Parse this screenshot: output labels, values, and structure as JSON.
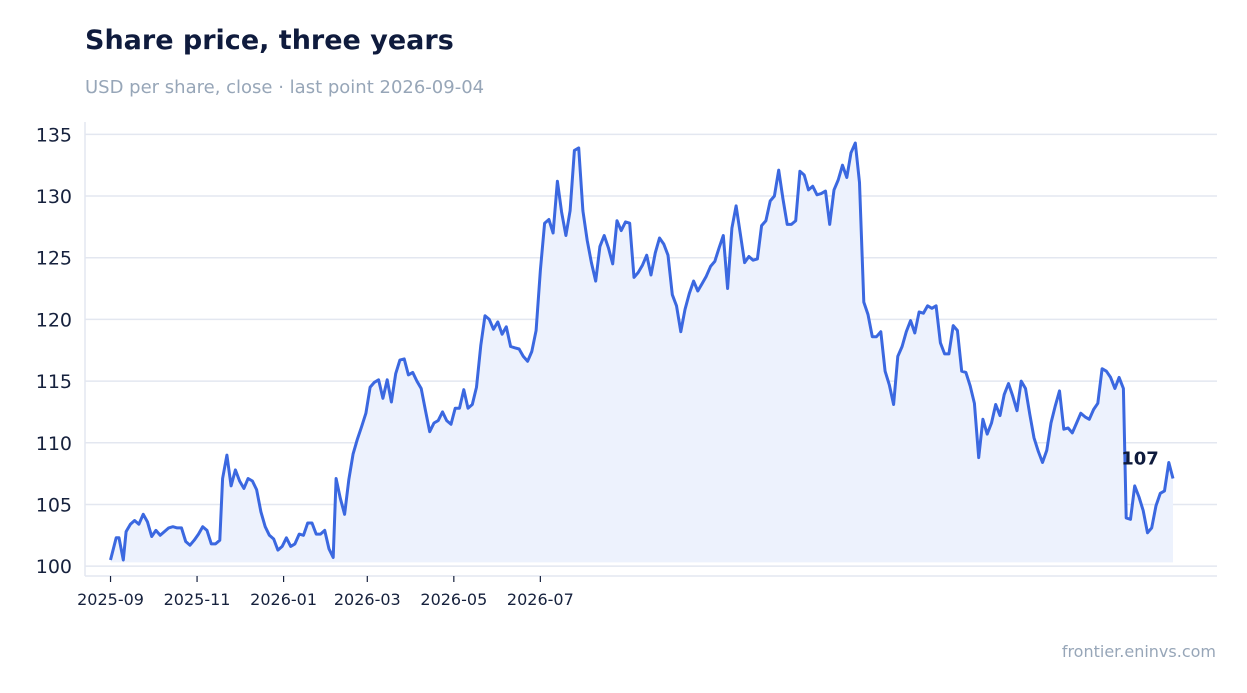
{
  "chart_data": {
    "type": "line",
    "title": "Share price, three years",
    "subtitle": "USD per share, close · last point 2026-09-04",
    "xlabel": "",
    "ylabel": "",
    "ylim": [
      99.2,
      136
    ],
    "yticks": [
      100,
      105,
      110,
      115,
      120,
      125,
      130,
      135
    ],
    "xtick_labels": [
      "2025-09",
      "2025-11",
      "2026-01",
      "2026-03",
      "2026-05",
      "2026-07"
    ],
    "grid": "horizontal",
    "fill_under": true,
    "line_color": "#3b68e0",
    "fill_color": "#edf2fd",
    "last_value_label": "107",
    "series": [
      {
        "values": [
          [
            0,
            100.5
          ],
          [
            4,
            102.3
          ],
          [
            6,
            102.3
          ],
          [
            9,
            100.5
          ],
          [
            11,
            102.8
          ],
          [
            14,
            103.4
          ],
          [
            17,
            103.7
          ],
          [
            20,
            103.4
          ],
          [
            23,
            104.2
          ],
          [
            26,
            103.6
          ],
          [
            29,
            102.4
          ],
          [
            32,
            102.9
          ],
          [
            35,
            102.5
          ],
          [
            38,
            102.8
          ],
          [
            41,
            103.1
          ],
          [
            44,
            103.2
          ],
          [
            47,
            103.1
          ],
          [
            50,
            103.1
          ],
          [
            53,
            102.0
          ],
          [
            56,
            101.7
          ],
          [
            59,
            102.1
          ],
          [
            62,
            102.6
          ],
          [
            65,
            103.2
          ],
          [
            68,
            102.9
          ],
          [
            71,
            101.8
          ],
          [
            74,
            101.8
          ],
          [
            77,
            102.1
          ],
          [
            79,
            107.1
          ],
          [
            82,
            109.0
          ],
          [
            85,
            106.5
          ],
          [
            88,
            107.8
          ],
          [
            91,
            106.9
          ],
          [
            94,
            106.3
          ],
          [
            97,
            107.1
          ],
          [
            100,
            106.9
          ],
          [
            103,
            106.2
          ],
          [
            106,
            104.4
          ],
          [
            109,
            103.2
          ],
          [
            112,
            102.5
          ],
          [
            115,
            102.2
          ],
          [
            118,
            101.3
          ],
          [
            121,
            101.6
          ],
          [
            124,
            102.3
          ],
          [
            127,
            101.6
          ],
          [
            130,
            101.8
          ],
          [
            133,
            102.6
          ],
          [
            136,
            102.5
          ],
          [
            139,
            103.5
          ],
          [
            142,
            103.5
          ],
          [
            145,
            102.6
          ],
          [
            148,
            102.6
          ],
          [
            151,
            102.9
          ],
          [
            154,
            101.4
          ],
          [
            157,
            100.7
          ],
          [
            159,
            107.1
          ],
          [
            162,
            105.5
          ],
          [
            165,
            104.2
          ],
          [
            168,
            107.0
          ],
          [
            171,
            109.1
          ],
          [
            174,
            110.3
          ],
          [
            177,
            111.3
          ],
          [
            180,
            112.4
          ],
          [
            183,
            114.5
          ],
          [
            186,
            114.9
          ],
          [
            189,
            115.1
          ],
          [
            192,
            113.6
          ],
          [
            195,
            115.1
          ],
          [
            198,
            113.3
          ],
          [
            201,
            115.6
          ],
          [
            204,
            116.7
          ],
          [
            207,
            116.8
          ],
          [
            210,
            115.5
          ],
          [
            213,
            115.7
          ],
          [
            216,
            115.0
          ],
          [
            219,
            114.4
          ],
          [
            222,
            112.6
          ],
          [
            225,
            110.9
          ],
          [
            228,
            111.6
          ],
          [
            231,
            111.8
          ],
          [
            234,
            112.5
          ],
          [
            237,
            111.8
          ],
          [
            240,
            111.5
          ],
          [
            243,
            112.8
          ],
          [
            246,
            112.8
          ],
          [
            249,
            114.3
          ],
          [
            252,
            112.8
          ],
          [
            255,
            113.1
          ],
          [
            258,
            114.5
          ],
          [
            261,
            117.9
          ],
          [
            264,
            120.3
          ],
          [
            267,
            120.0
          ],
          [
            270,
            119.2
          ],
          [
            273,
            119.8
          ],
          [
            276,
            118.8
          ],
          [
            279,
            119.4
          ],
          [
            282,
            117.8
          ],
          [
            285,
            117.7
          ],
          [
            288,
            117.6
          ],
          [
            291,
            117.0
          ],
          [
            294,
            116.6
          ],
          [
            297,
            117.4
          ],
          [
            300,
            119.1
          ],
          [
            303,
            124.0
          ],
          [
            306,
            127.8
          ],
          [
            309,
            128.1
          ],
          [
            312,
            127.0
          ],
          [
            315,
            131.2
          ],
          [
            318,
            128.7
          ],
          [
            321,
            126.8
          ],
          [
            324,
            128.8
          ],
          [
            327,
            133.7
          ],
          [
            330,
            133.9
          ],
          [
            333,
            128.8
          ],
          [
            336,
            126.4
          ],
          [
            339,
            124.6
          ],
          [
            342,
            123.1
          ],
          [
            345,
            125.9
          ],
          [
            348,
            126.8
          ],
          [
            351,
            125.8
          ],
          [
            354,
            124.5
          ],
          [
            357,
            128.0
          ],
          [
            360,
            127.2
          ],
          [
            363,
            127.9
          ],
          [
            366,
            127.8
          ],
          [
            369,
            123.4
          ],
          [
            372,
            123.8
          ],
          [
            375,
            124.4
          ],
          [
            378,
            125.2
          ],
          [
            381,
            123.6
          ],
          [
            384,
            125.4
          ],
          [
            387,
            126.6
          ],
          [
            390,
            126.1
          ],
          [
            393,
            125.2
          ],
          [
            396,
            122.0
          ],
          [
            399,
            121.1
          ],
          [
            402,
            119.0
          ],
          [
            405,
            120.8
          ],
          [
            408,
            122.1
          ],
          [
            411,
            123.1
          ],
          [
            414,
            122.3
          ],
          [
            417,
            122.9
          ],
          [
            420,
            123.5
          ],
          [
            423,
            124.3
          ],
          [
            426,
            124.7
          ],
          [
            429,
            125.8
          ],
          [
            432,
            126.8
          ],
          [
            435,
            122.5
          ],
          [
            438,
            127.4
          ],
          [
            441,
            129.2
          ],
          [
            444,
            126.9
          ],
          [
            447,
            124.6
          ],
          [
            450,
            125.1
          ],
          [
            453,
            124.8
          ],
          [
            456,
            124.9
          ],
          [
            459,
            127.6
          ],
          [
            462,
            128.0
          ],
          [
            465,
            129.6
          ],
          [
            468,
            130.0
          ],
          [
            471,
            132.1
          ],
          [
            474,
            129.8
          ],
          [
            477,
            127.7
          ],
          [
            480,
            127.7
          ],
          [
            483,
            128.0
          ],
          [
            486,
            132.0
          ],
          [
            489,
            131.7
          ],
          [
            492,
            130.5
          ],
          [
            495,
            130.8
          ],
          [
            498,
            130.1
          ],
          [
            501,
            130.2
          ],
          [
            504,
            130.4
          ],
          [
            507,
            127.7
          ],
          [
            510,
            130.5
          ],
          [
            513,
            131.3
          ],
          [
            516,
            132.5
          ],
          [
            519,
            131.5
          ],
          [
            522,
            133.5
          ],
          [
            525,
            134.3
          ],
          [
            528,
            131.1
          ],
          [
            531,
            121.4
          ],
          [
            534,
            120.4
          ],
          [
            537,
            118.6
          ],
          [
            540,
            118.6
          ],
          [
            543,
            119.0
          ],
          [
            546,
            115.8
          ],
          [
            549,
            114.7
          ],
          [
            552,
            113.1
          ],
          [
            555,
            117.0
          ],
          [
            558,
            117.8
          ],
          [
            561,
            119.0
          ],
          [
            564,
            119.9
          ],
          [
            567,
            118.9
          ],
          [
            570,
            120.6
          ],
          [
            573,
            120.5
          ],
          [
            576,
            121.1
          ],
          [
            579,
            120.9
          ],
          [
            582,
            121.1
          ],
          [
            585,
            118.1
          ],
          [
            588,
            117.2
          ],
          [
            591,
            117.2
          ],
          [
            594,
            119.5
          ],
          [
            597,
            119.1
          ],
          [
            600,
            115.8
          ],
          [
            603,
            115.7
          ],
          [
            606,
            114.6
          ],
          [
            609,
            113.2
          ],
          [
            612,
            108.8
          ],
          [
            615,
            111.9
          ],
          [
            618,
            110.7
          ],
          [
            621,
            111.6
          ],
          [
            624,
            113.1
          ],
          [
            627,
            112.2
          ],
          [
            630,
            113.9
          ],
          [
            633,
            114.8
          ],
          [
            636,
            113.8
          ],
          [
            639,
            112.6
          ],
          [
            642,
            115.0
          ],
          [
            645,
            114.4
          ],
          [
            648,
            112.3
          ],
          [
            651,
            110.4
          ],
          [
            654,
            109.3
          ],
          [
            657,
            108.4
          ],
          [
            660,
            109.4
          ],
          [
            663,
            111.6
          ],
          [
            666,
            113.0
          ],
          [
            669,
            114.2
          ],
          [
            672,
            111.1
          ],
          [
            675,
            111.2
          ],
          [
            678,
            110.8
          ],
          [
            681,
            111.6
          ],
          [
            684,
            112.4
          ],
          [
            687,
            112.1
          ],
          [
            690,
            111.9
          ],
          [
            693,
            112.7
          ],
          [
            696,
            113.2
          ],
          [
            699,
            116.0
          ],
          [
            702,
            115.8
          ],
          [
            705,
            115.3
          ],
          [
            708,
            114.4
          ],
          [
            711,
            115.3
          ],
          [
            714,
            114.4
          ],
          [
            716,
            103.9
          ],
          [
            719,
            103.8
          ],
          [
            722,
            106.5
          ],
          [
            725,
            105.6
          ],
          [
            728,
            104.5
          ],
          [
            731,
            102.7
          ],
          [
            734,
            103.1
          ],
          [
            737,
            104.9
          ],
          [
            740,
            105.9
          ],
          [
            743,
            106.1
          ],
          [
            746,
            108.4
          ],
          [
            749,
            107.1
          ]
        ]
      }
    ],
    "x_unit": "days from 2025-09-01"
  },
  "source": "frontier.eninvs.com"
}
